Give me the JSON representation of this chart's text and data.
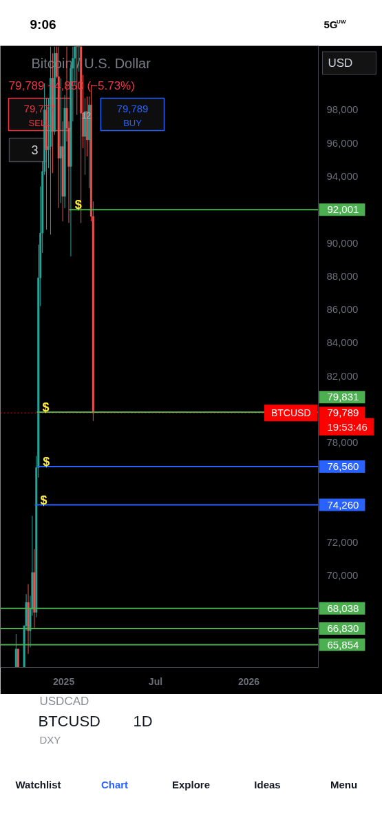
{
  "chart_data": {
    "type": "candlestick",
    "title": "Bitcoin / U.S. Dollar",
    "subtitle": "79,789 −4,850 (−5.73%)",
    "x": [
      "2024-09-29",
      "2024-10-03",
      "2024-10-15",
      "2024-10-19",
      "2024-10-23",
      "2024-10-27",
      "2024-10-31",
      "2024-11-04",
      "2024-11-08",
      "2024-11-12",
      "2024-11-16",
      "2024-11-20",
      "2024-11-24",
      "2024-11-28",
      "2024-12-02",
      "2024-12-06",
      "2024-12-10",
      "2024-12-14",
      "2024-12-18",
      "2024-12-22",
      "2024-12-26",
      "2024-12-30",
      "2025-01-03",
      "2025-01-07",
      "2025-01-11",
      "2025-01-15",
      "2025-01-19",
      "2025-01-23",
      "2025-01-27",
      "2025-01-31",
      "2025-02-04",
      "2025-02-08",
      "2025-02-12",
      "2025-02-16",
      "2025-02-20",
      "2025-02-24",
      "2025-02-28"
    ],
    "ohlc": [
      [
        64500,
        66500,
        64500,
        65600
      ],
      [
        65600,
        65600,
        64500,
        64500
      ],
      [
        64500,
        67000,
        64500,
        67000
      ],
      [
        67000,
        68900,
        66700,
        68400
      ],
      [
        68400,
        69500,
        65300,
        66700
      ],
      [
        66700,
        68800,
        65700,
        68000
      ],
      [
        68000,
        73600,
        67600,
        70200
      ],
      [
        70200,
        71600,
        66800,
        67800
      ],
      [
        67800,
        77200,
        67500,
        76500
      ],
      [
        76500,
        89900,
        75900,
        87900
      ],
      [
        87900,
        93400,
        86200,
        90600
      ],
      [
        90600,
        94900,
        89400,
        94300
      ],
      [
        94300,
        99600,
        94100,
        98000
      ],
      [
        98000,
        98700,
        90800,
        95600
      ],
      [
        95600,
        98700,
        94500,
        95800
      ],
      [
        95800,
        101800,
        90500,
        99900
      ],
      [
        99900,
        101400,
        94200,
        96700
      ],
      [
        96700,
        101800,
        96500,
        101400
      ],
      [
        101400,
        101800,
        99900,
        100000
      ],
      [
        100000,
        101800,
        92100,
        95100
      ],
      [
        95100,
        99900,
        92400,
        95800
      ],
      [
        95800,
        97300,
        91300,
        92800
      ],
      [
        92800,
        98900,
        92100,
        98100
      ],
      [
        98100,
        101800,
        96100,
        96900
      ],
      [
        96900,
        97300,
        91200,
        94600
      ],
      [
        94600,
        100700,
        89200,
        100500
      ],
      [
        100500,
        101800,
        97300,
        101100
      ],
      [
        101100,
        101800,
        99500,
        101800
      ],
      [
        101800,
        101800,
        97700,
        101800
      ],
      [
        101800,
        101800,
        100300,
        101800
      ],
      [
        101800,
        101800,
        91200,
        97800
      ],
      [
        97800,
        100100,
        95700,
        96400
      ],
      [
        96400,
        98700,
        94100,
        97900
      ],
      [
        97900,
        98800,
        95200,
        96200
      ],
      [
        96200,
        98800,
        93300,
        98300
      ],
      [
        98300,
        99500,
        91300,
        91600
      ],
      [
        91600,
        92500,
        79300,
        79789
      ]
    ],
    "colors": [
      "#26a69a",
      "#ef5350",
      "#26a69a",
      "#26a69a",
      "#ef5350",
      "#26a69a",
      "#26a69a",
      "#ef5350",
      "#26a69a",
      "#26a69a",
      "#26a69a",
      "#26a69a",
      "#26a69a",
      "#ef5350",
      "#26a69a",
      "#26a69a",
      "#ef5350",
      "#26a69a",
      "#ef5350",
      "#ef5350",
      "#26a69a",
      "#ef5350",
      "#26a69a",
      "#ef5350",
      "#ef5350",
      "#26a69a",
      "#26a69a",
      "#26a69a",
      "#ef5350",
      "#26a69a",
      "#ef5350",
      "#ef5350",
      "#26a69a",
      "#ef5350",
      "#26a69a",
      "#ef5350",
      "#ef5350"
    ],
    "series": [
      {
        "type": "line",
        "x": [
          "2025-01-12",
          "2026-05-18"
        ],
        "values": [
          92001,
          92001
        ],
        "color": "#4caf50",
        "value_labels": [
          null,
          "92,001"
        ]
      },
      {
        "type": "line",
        "x": [
          "2024-11-09",
          "2026-05-18"
        ],
        "values": [
          79831,
          79831
        ],
        "color": "#4caf50",
        "value_labels": [
          null,
          "79,831"
        ]
      },
      {
        "type": "line",
        "x": [
          "2024-11-10",
          "2026-05-18"
        ],
        "values": [
          76560,
          76560
        ],
        "color": "#2962ff",
        "value_labels": [
          null,
          "76,560"
        ]
      },
      {
        "type": "line",
        "x": [
          "2024-11-05",
          "2026-05-18"
        ],
        "values": [
          74260,
          74260
        ],
        "color": "#2962ff",
        "value_labels": [
          null,
          "74,260"
        ]
      }
    ],
    "ref_lines": [
      {
        "axis": "y",
        "value": 79789,
        "label": "79,789",
        "color": "#ff0000",
        "line_style": "dotted"
      },
      {
        "axis": "y",
        "value": 68038,
        "label": "68,038",
        "color": "#4caf50"
      },
      {
        "axis": "y",
        "value": 66830,
        "label": "66,830",
        "color": "#4caf50"
      },
      {
        "axis": "y",
        "value": 65854,
        "label": "65,854",
        "color": "#4caf50"
      }
    ],
    "xlim": [
      "2024-08-29",
      "2026-05-18"
    ],
    "xticks": [
      {
        "value": "2025-01-01",
        "label": "2025"
      },
      {
        "value": "2025-07-01",
        "label": "Jul"
      },
      {
        "value": "2026-01-01",
        "label": "2026"
      }
    ],
    "ylim": [
      64490,
      101850
    ],
    "yticks": [
      {
        "value": 70000,
        "label": "70,000"
      },
      {
        "value": 72000,
        "label": "72,000"
      },
      {
        "value": 78000,
        "label": "78,000"
      },
      {
        "value": 82000,
        "label": "82,000"
      },
      {
        "value": 84000,
        "label": "84,000"
      },
      {
        "value": 86000,
        "label": "86,000"
      },
      {
        "value": 88000,
        "label": "88,000"
      },
      {
        "value": 90000,
        "label": "90,000"
      },
      {
        "value": 94000,
        "label": "94,000"
      },
      {
        "value": 96000,
        "label": "96,000"
      },
      {
        "value": 98000,
        "label": "98,000"
      }
    ],
    "grid": false,
    "annotations": [
      "9:06",
      "5G$^{UW}$",
      "USD",
      "79,777",
      "SELL",
      "12",
      "79,789",
      "BUY",
      "3",
      "BTCUSD",
      "19:53:46",
      "USDCAD",
      "BTCUSD",
      "1D",
      "DXY",
      "Watchlist",
      "Chart",
      "Explore",
      "Ideas",
      "Menu",
      {
        "text": "$",
        "x": "2025-01-12",
        "y": 92001
      },
      {
        "text": "$",
        "x": "2024-11-09",
        "y": 79831
      },
      {
        "text": "$",
        "x": "2024-11-10",
        "y": 76560
      },
      {
        "text": "$",
        "x": "2024-11-05",
        "y": 74260
      }
    ]
  }
}
